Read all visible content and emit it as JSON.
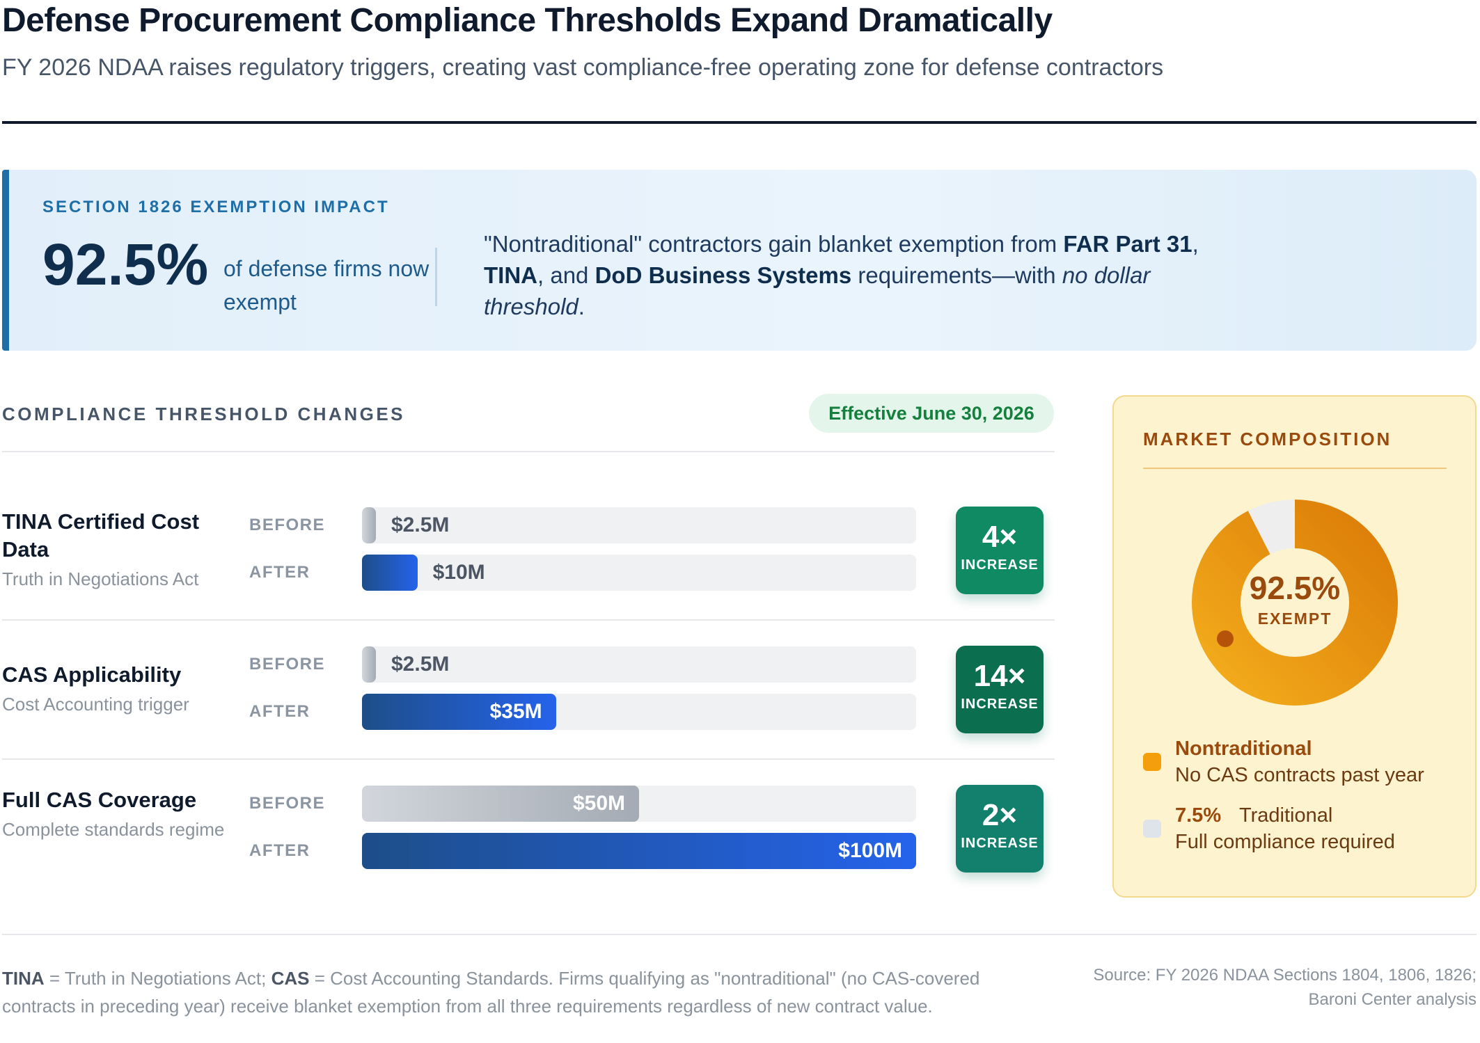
{
  "header": {
    "title": "Defense Procurement Compliance Thresholds Expand Dramatically",
    "subtitle": "FY 2026 NDAA raises regulatory triggers, creating vast compliance-free operating zone for defense contractors"
  },
  "impact": {
    "label": "SECTION 1826 EXEMPTION IMPACT",
    "big_value": "92.5%",
    "big_desc": "of defense firms now exempt",
    "text_1": "\"Nontraditional\" contractors gain blanket exemption from ",
    "bold_1": "FAR Part 31",
    "text_2": ", ",
    "bold_2": "TINA",
    "text_3": ", and ",
    "bold_3": "DoD Business Systems",
    "text_4": " requirements—with ",
    "italic_1": "no dollar threshold",
    "text_5": "."
  },
  "thresholds": {
    "label": "COMPLIANCE THRESHOLD CHANGES",
    "effective": "Effective June 30, 2026",
    "before_label": "BEFORE",
    "after_label": "AFTER",
    "rows": [
      {
        "name": "TINA Certified Cost Data",
        "sub": "Truth in Negotiations Act",
        "before": "$2.5M",
        "after": "$10M",
        "mult": "4×",
        "mult_label": "INCREASE"
      },
      {
        "name": "CAS Applicability",
        "sub": "Cost Accounting trigger",
        "before": "$2.5M",
        "after": "$35M",
        "mult": "14×",
        "mult_label": "INCREASE"
      },
      {
        "name": "Full CAS Coverage",
        "sub": "Complete standards regime",
        "before": "$50M",
        "after": "$100M",
        "mult": "2×",
        "mult_label": "INCREASE"
      }
    ]
  },
  "market": {
    "label": "MARKET COMPOSITION",
    "center_value": "92.5%",
    "center_label": "EXEMPT",
    "legend": [
      {
        "name": "Nontraditional",
        "desc": "No CAS contracts past year"
      },
      {
        "pct": "7.5%",
        "name": "Traditional",
        "desc": "Full compliance required"
      }
    ]
  },
  "footer": {
    "abbr_1": "TINA",
    "def_1": " = Truth in Negotiations Act; ",
    "abbr_2": "CAS",
    "def_2": " = Cost Accounting Standards. Firms qualifying as \"nontraditional\" (no CAS-covered contracts in preceding year) receive blanket exemption from all three requirements regardless of new contract value.",
    "source": "Source: FY 2026 NDAA Sections 1804, 1806, 1826; Baroni Center analysis"
  },
  "colors": {
    "before_fill": "#a4abb4",
    "after_fill": "#2563eb",
    "mult_teal": [
      "#0f8a63",
      "#0b6e4f",
      "#12806d"
    ],
    "exempt": "#f5a417",
    "traditional": "#eeeeee",
    "accent_blue": "#1e6fa8"
  },
  "chart_data": [
    {
      "type": "bar",
      "orientation": "horizontal",
      "categories": [
        "TINA Certified Cost Data",
        "CAS Applicability",
        "Full CAS Coverage"
      ],
      "unit": "$M",
      "xlim": [
        0,
        100
      ],
      "series": [
        {
          "name": "BEFORE",
          "values": [
            2.5,
            2.5,
            50
          ]
        },
        {
          "name": "AFTER",
          "values": [
            10,
            35,
            100
          ]
        }
      ],
      "multipliers": [
        "4×",
        "14×",
        "2×"
      ]
    },
    {
      "type": "pie",
      "title": "MARKET COMPOSITION",
      "slices": [
        {
          "name": "Nontraditional",
          "value": 92.5
        },
        {
          "name": "Traditional",
          "value": 7.5
        }
      ]
    }
  ]
}
